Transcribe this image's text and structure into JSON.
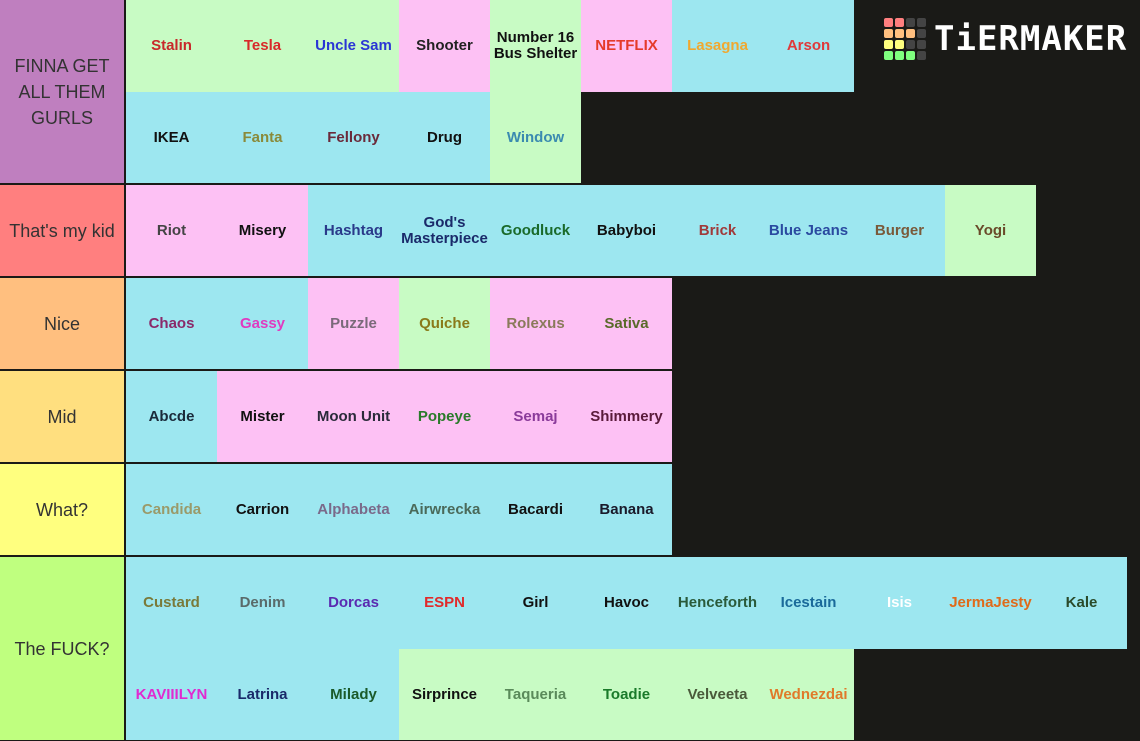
{
  "logo": "TiERMAKER",
  "tiers": [
    {
      "label": "FINNA GET ALL THEM GURLS",
      "color": "#bf7fbf",
      "lines": [
        [
          {
            "text": "Stalin",
            "bg": "#c8fbc4",
            "color": "#c8282a"
          },
          {
            "text": "Tesla",
            "bg": "#c8fbc4",
            "color": "#d82a2a"
          },
          {
            "text": "Uncle Sam",
            "bg": "#c8fbc4",
            "color": "#2a35d5"
          },
          {
            "text": "Shooter",
            "bg": "#fdc1f4",
            "color": "#222222"
          },
          {
            "text": "Number 16 Bus Shelter",
            "bg": "#c8fbc4",
            "color": "#111111"
          },
          {
            "text": "NETFLIX",
            "bg": "#fdc1f4",
            "color": "#e53a2a"
          },
          {
            "text": "Lasagna",
            "bg": "#9de7f0",
            "color": "#f0a830"
          },
          {
            "text": "Arson",
            "bg": "#9de7f0",
            "color": "#e03a3a"
          }
        ],
        [
          {
            "text": "IKEA",
            "bg": "#9de7f0",
            "color": "#111111"
          },
          {
            "text": "Fanta",
            "bg": "#9de7f0",
            "color": "#8a8a3a"
          },
          {
            "text": "Fellony",
            "bg": "#9de7f0",
            "color": "#6a2a3a"
          },
          {
            "text": "Drug",
            "bg": "#9de7f0",
            "color": "#111111"
          },
          {
            "text": "Window",
            "bg": "#c8fbc4",
            "color": "#3a8ab0"
          }
        ]
      ]
    },
    {
      "label": "That's my kid",
      "color": "#ff7f7f",
      "lines": [
        [
          {
            "text": "Riot",
            "bg": "#fdc1f4",
            "color": "#444444"
          },
          {
            "text": "Misery",
            "bg": "#fdc1f4",
            "color": "#111111"
          },
          {
            "text": "Hashtag",
            "bg": "#9de7f0",
            "color": "#2a3a8a"
          },
          {
            "text": "God's Masterpiece",
            "bg": "#9de7f0",
            "color": "#1a2a6a"
          },
          {
            "text": "Goodluck",
            "bg": "#9de7f0",
            "color": "#1a6a2a"
          },
          {
            "text": "Babyboi",
            "bg": "#9de7f0",
            "color": "#111111"
          },
          {
            "text": "Brick",
            "bg": "#9de7f0",
            "color": "#a03a3a"
          },
          {
            "text": "Blue Jeans",
            "bg": "#9de7f0",
            "color": "#2a4aa0"
          },
          {
            "text": "Burger",
            "bg": "#9de7f0",
            "color": "#7a5a3a"
          },
          {
            "text": "Yogi",
            "bg": "#c8fbc4",
            "color": "#6a4a2a"
          }
        ]
      ]
    },
    {
      "label": "Nice",
      "color": "#ffbf7f",
      "lines": [
        [
          {
            "text": "Chaos",
            "bg": "#9de7f0",
            "color": "#8a2a6a"
          },
          {
            "text": "Gassy",
            "bg": "#9de7f0",
            "color": "#e03ac0"
          },
          {
            "text": "Puzzle",
            "bg": "#fdc1f4",
            "color": "#7a6a7a"
          },
          {
            "text": "Quiche",
            "bg": "#c8fbc4",
            "color": "#8a7a1a"
          },
          {
            "text": "Rolexus",
            "bg": "#fdc1f4",
            "color": "#8a7a5a"
          },
          {
            "text": "Sativa",
            "bg": "#fdc1f4",
            "color": "#5a6a2a"
          }
        ]
      ]
    },
    {
      "label": "Mid",
      "color": "#ffdf7f",
      "lines": [
        [
          {
            "text": "Abcde",
            "bg": "#9de7f0",
            "color": "#1a2a3a"
          },
          {
            "text": "Mister",
            "bg": "#fdc1f4",
            "color": "#111111"
          },
          {
            "text": "Moon Unit",
            "bg": "#fdc1f4",
            "color": "#2a2a3a"
          },
          {
            "text": "Popeye",
            "bg": "#fdc1f4",
            "color": "#2a7a2a"
          },
          {
            "text": "Semaj",
            "bg": "#fdc1f4",
            "color": "#8a3a9a"
          },
          {
            "text": "Shimmery",
            "bg": "#fdc1f4",
            "color": "#5a1a3a"
          }
        ]
      ]
    },
    {
      "label": "What?",
      "color": "#ffff7f",
      "lines": [
        [
          {
            "text": "Candida",
            "bg": "#9de7f0",
            "color": "#9a9a6a"
          },
          {
            "text": "Carrion",
            "bg": "#9de7f0",
            "color": "#111111"
          },
          {
            "text": "Alphabeta",
            "bg": "#9de7f0",
            "color": "#7a6a8a"
          },
          {
            "text": "Airwrecka",
            "bg": "#9de7f0",
            "color": "#4a6a5a"
          },
          {
            "text": "Bacardi",
            "bg": "#9de7f0",
            "color": "#111111"
          },
          {
            "text": "Banana",
            "bg": "#9de7f0",
            "color": "#1a1a2a"
          }
        ]
      ]
    },
    {
      "label": "The FUCK?",
      "color": "#bfff7f",
      "lines": [
        [
          {
            "text": "Custard",
            "bg": "#9de7f0",
            "color": "#7a7a3a"
          },
          {
            "text": "Denim",
            "bg": "#9de7f0",
            "color": "#5a6a6a"
          },
          {
            "text": "Dorcas",
            "bg": "#9de7f0",
            "color": "#5a2ab0"
          },
          {
            "text": "ESPN",
            "bg": "#9de7f0",
            "color": "#e02a2a"
          },
          {
            "text": "Girl",
            "bg": "#9de7f0",
            "color": "#111111"
          },
          {
            "text": "Havoc",
            "bg": "#9de7f0",
            "color": "#111111"
          },
          {
            "text": "Henceforth",
            "bg": "#9de7f0",
            "color": "#2a5a3a"
          },
          {
            "text": "Icestain",
            "bg": "#9de7f0",
            "color": "#1a6a9a"
          },
          {
            "text": "Isis",
            "bg": "#9de7f0",
            "color": "#ffffff"
          },
          {
            "text": "JermaJesty",
            "bg": "#9de7f0",
            "color": "#e06a1a"
          },
          {
            "text": "Kale",
            "bg": "#9de7f0",
            "color": "#2a4a2a"
          }
        ],
        [
          {
            "text": "KAVIIILYN",
            "bg": "#9de7f0",
            "color": "#e02ad0"
          },
          {
            "text": "Latrina",
            "bg": "#9de7f0",
            "color": "#1a2a6a"
          },
          {
            "text": "Milady",
            "bg": "#9de7f0",
            "color": "#1a5a2a"
          },
          {
            "text": "Sirprince",
            "bg": "#c8fbc4",
            "color": "#111111"
          },
          {
            "text": "Taqueria",
            "bg": "#c8fbc4",
            "color": "#5a8a5a"
          },
          {
            "text": "Toadie",
            "bg": "#c8fbc4",
            "color": "#1a7a2a"
          },
          {
            "text": "Velveeta",
            "bg": "#c8fbc4",
            "color": "#4a5a3a"
          },
          {
            "text": "Wednezdai",
            "bg": "#c8fbc4",
            "color": "#e07a2a"
          }
        ]
      ]
    }
  ]
}
